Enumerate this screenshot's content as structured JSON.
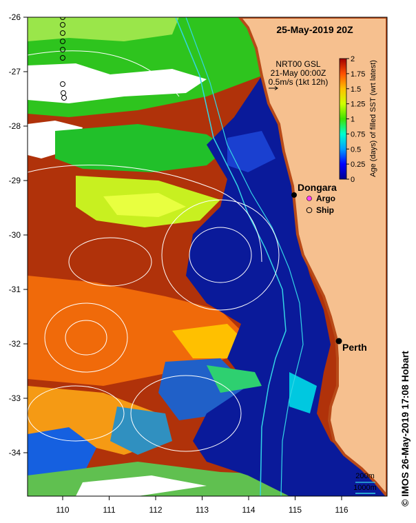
{
  "map": {
    "title": "25-May-2019 20Z",
    "info_lines": [
      "NRT00 GSL",
      "21-May 00:00Z",
      "0.5m/s (1kt 12h)"
    ],
    "x_ticks": [
      "110",
      "111",
      "112",
      "113",
      "114",
      "115",
      "116"
    ],
    "y_ticks": [
      "-26",
      "-27",
      "-28",
      "-29",
      "-30",
      "-31",
      "-32",
      "-33",
      "-34"
    ],
    "places": [
      {
        "name": "Dongara",
        "lon": 114.9,
        "lat": -29.25
      },
      {
        "name": "Perth",
        "lon": 115.85,
        "lat": -31.95
      }
    ],
    "legend": [
      {
        "label": "Argo",
        "symbol": "magenta-circle"
      },
      {
        "label": "Ship",
        "symbol": "open-circle"
      }
    ],
    "isobaths": [
      "200m",
      "1000m"
    ],
    "credit": "© IMOS 26-May-2019 17:08 Hobart",
    "colors": {
      "land": "#f6c08f",
      "coast": "#b84a18",
      "bathy": "#33d6e6",
      "contour": "#ffffff"
    }
  },
  "colorbar": {
    "label": "Age (days) of filled SST (wrt latest)",
    "ticks": [
      "0",
      "0.25",
      "0.5",
      "0.75",
      "1",
      "1.25",
      "1.5",
      "1.75",
      "2"
    ],
    "stops": [
      "#00008f",
      "#0000ff",
      "#00a0ff",
      "#00ffd0",
      "#40e000",
      "#d0ff00",
      "#ffc000",
      "#ff5000",
      "#a00000"
    ]
  }
}
